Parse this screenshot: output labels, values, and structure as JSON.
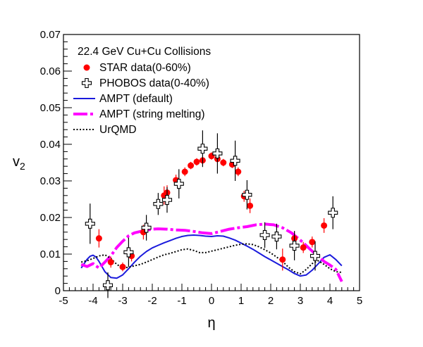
{
  "chart_data": {
    "type": "scatter",
    "title": "",
    "xlabel": "η",
    "ylabel": "v",
    "ylabel_sub": "2",
    "xlim": [
      -5,
      5
    ],
    "ylim": [
      0,
      0.07
    ],
    "xticks": [
      -5,
      -4,
      -3,
      -2,
      -1,
      0,
      1,
      2,
      3,
      4,
      5
    ],
    "yticks": [
      0,
      0.01,
      0.02,
      0.03,
      0.04,
      0.05,
      0.06,
      0.07
    ],
    "ytick_labels": [
      "0",
      "0.01",
      "0.02",
      "0.03",
      "0.04",
      "0.05",
      "0.06",
      "0.07"
    ],
    "grid": false,
    "legend_header": "22.4 GeV Cu+Cu Collisions",
    "legend_position": "top-left",
    "series": [
      {
        "name": "STAR data(0-60%)",
        "kind": "points",
        "marker": "filled-circle",
        "color": "#ff0000",
        "points": [
          {
            "x": -3.8,
            "y": 0.0143,
            "err": 0.0025
          },
          {
            "x": -3.4,
            "y": 0.0078,
            "err": 0.0015
          },
          {
            "x": -3.0,
            "y": 0.0065,
            "err": 0.0012
          },
          {
            "x": -2.7,
            "y": 0.0095,
            "err": 0.0015
          },
          {
            "x": -2.3,
            "y": 0.016,
            "err": 0.002
          },
          {
            "x": -1.6,
            "y": 0.026,
            "err": 0.0025
          },
          {
            "x": -1.5,
            "y": 0.0268,
            "err": 0.002
          },
          {
            "x": -1.2,
            "y": 0.0302,
            "err": 0.0015
          },
          {
            "x": -0.9,
            "y": 0.0325,
            "err": 0.0012
          },
          {
            "x": -0.7,
            "y": 0.0342,
            "err": 0.001
          },
          {
            "x": -0.5,
            "y": 0.0352,
            "err": 0.001
          },
          {
            "x": -0.3,
            "y": 0.0356,
            "err": 0.001
          },
          {
            "x": 0.0,
            "y": 0.0368,
            "err": 0.001
          },
          {
            "x": 0.2,
            "y": 0.036,
            "err": 0.001
          },
          {
            "x": 0.4,
            "y": 0.035,
            "err": 0.001
          },
          {
            "x": 0.7,
            "y": 0.0345,
            "err": 0.001
          },
          {
            "x": 0.9,
            "y": 0.0325,
            "err": 0.0012
          },
          {
            "x": 1.1,
            "y": 0.0258,
            "err": 0.0015
          },
          {
            "x": 1.3,
            "y": 0.0232,
            "err": 0.002
          },
          {
            "x": 2.4,
            "y": 0.0085,
            "err": 0.003
          },
          {
            "x": 2.8,
            "y": 0.0143,
            "err": 0.002
          },
          {
            "x": 3.1,
            "y": 0.0118,
            "err": 0.0015
          },
          {
            "x": 3.4,
            "y": 0.0133,
            "err": 0.0015
          },
          {
            "x": 3.8,
            "y": 0.0178,
            "err": 0.002
          }
        ]
      },
      {
        "name": "PHOBOS data(0-40%)",
        "kind": "points",
        "marker": "open-cross",
        "color": "#000000",
        "points": [
          {
            "x": -4.1,
            "y": 0.0183,
            "err": 0.0055
          },
          {
            "x": -3.5,
            "y": 0.0015,
            "err": 0.0035
          },
          {
            "x": -2.8,
            "y": 0.0105,
            "err": 0.004
          },
          {
            "x": -2.2,
            "y": 0.0172,
            "err": 0.0035
          },
          {
            "x": -1.8,
            "y": 0.0237,
            "err": 0.003
          },
          {
            "x": -1.5,
            "y": 0.0248,
            "err": 0.0035
          },
          {
            "x": -1.1,
            "y": 0.0292,
            "err": 0.004
          },
          {
            "x": -0.3,
            "y": 0.0388,
            "err": 0.005
          },
          {
            "x": 0.2,
            "y": 0.0375,
            "err": 0.0055
          },
          {
            "x": 0.8,
            "y": 0.0355,
            "err": 0.0055
          },
          {
            "x": 1.2,
            "y": 0.0262,
            "err": 0.004
          },
          {
            "x": 1.8,
            "y": 0.0152,
            "err": 0.0035
          },
          {
            "x": 2.2,
            "y": 0.0148,
            "err": 0.0035
          },
          {
            "x": 2.8,
            "y": 0.0123,
            "err": 0.004
          },
          {
            "x": 3.5,
            "y": 0.0095,
            "err": 0.004
          },
          {
            "x": 4.1,
            "y": 0.0213,
            "err": 0.0045
          }
        ]
      },
      {
        "name": "AMPT (default)",
        "kind": "line",
        "style": "solid",
        "color": "#1a1adc",
        "x": [
          -4.4,
          -4.3,
          -4.2,
          -4.1,
          -4.0,
          -3.9,
          -3.8,
          -3.6,
          -3.4,
          -3.2,
          -3.0,
          -2.8,
          -2.6,
          -2.4,
          -2.2,
          -2.0,
          -1.8,
          -1.6,
          -1.4,
          -1.2,
          -1.0,
          -0.8,
          -0.6,
          -0.4,
          -0.2,
          0.0,
          0.2,
          0.4,
          0.6,
          0.8,
          1.0,
          1.2,
          1.4,
          1.6,
          1.8,
          2.0,
          2.2,
          2.4,
          2.6,
          2.8,
          3.0,
          3.2,
          3.4,
          3.6,
          3.8,
          4.0,
          4.2,
          4.4
        ],
        "y": [
          0.0062,
          0.0074,
          0.0086,
          0.0094,
          0.0097,
          0.0092,
          0.008,
          0.0052,
          0.0036,
          0.0034,
          0.0043,
          0.006,
          0.0078,
          0.0094,
          0.0107,
          0.0117,
          0.0124,
          0.0131,
          0.0137,
          0.0143,
          0.0148,
          0.0151,
          0.0152,
          0.0151,
          0.0149,
          0.0148,
          0.015,
          0.0149,
          0.0144,
          0.0138,
          0.013,
          0.0122,
          0.0113,
          0.0103,
          0.0093,
          0.0084,
          0.0075,
          0.0066,
          0.0057,
          0.0047,
          0.004,
          0.0043,
          0.0056,
          0.0073,
          0.0091,
          0.0098,
          0.0085,
          0.0068
        ]
      },
      {
        "name": "AMPT (string melting)",
        "kind": "line",
        "style": "dash",
        "color": "#ff00ff",
        "x": [
          -4.4,
          -4.2,
          -4.0,
          -3.8,
          -3.6,
          -3.4,
          -3.2,
          -3.0,
          -2.8,
          -2.6,
          -2.4,
          -2.2,
          -2.0,
          -1.8,
          -1.5,
          -1.2,
          -0.9,
          -0.6,
          -0.3,
          0.0,
          0.3,
          0.6,
          0.9,
          1.2,
          1.5,
          1.8,
          2.1,
          2.4,
          2.7,
          3.0,
          3.2,
          3.4,
          3.6,
          3.8,
          4.0,
          4.2,
          4.4
        ],
        "y": [
          0.0072,
          0.0066,
          0.0074,
          0.0062,
          0.0078,
          0.0095,
          0.0118,
          0.0135,
          0.015,
          0.0158,
          0.0162,
          0.0165,
          0.0168,
          0.0169,
          0.0168,
          0.0166,
          0.0165,
          0.0162,
          0.0158,
          0.0156,
          0.0162,
          0.0168,
          0.0172,
          0.0175,
          0.018,
          0.0182,
          0.018,
          0.0172,
          0.0158,
          0.0138,
          0.0123,
          0.0108,
          0.0095,
          0.008,
          0.007,
          0.0058,
          0.0025
        ]
      },
      {
        "name": "UrQMD",
        "kind": "line",
        "style": "dot",
        "color": "#000000",
        "x": [
          -4.4,
          -4.2,
          -4.0,
          -3.8,
          -3.6,
          -3.4,
          -3.2,
          -3.0,
          -2.8,
          -2.6,
          -2.4,
          -2.2,
          -2.0,
          -1.8,
          -1.6,
          -1.4,
          -1.2,
          -1.0,
          -0.8,
          -0.6,
          -0.4,
          -0.2,
          0.0,
          0.2,
          0.4,
          0.6,
          0.8,
          1.0,
          1.2,
          1.4,
          1.6,
          1.8,
          2.0,
          2.2,
          2.4,
          2.6,
          2.8,
          3.0,
          3.2,
          3.4,
          3.6,
          3.8,
          4.0,
          4.2,
          4.4
        ],
        "y": [
          0.0078,
          0.0082,
          0.0088,
          0.0095,
          0.0098,
          0.0088,
          0.0072,
          0.0062,
          0.0064,
          0.0068,
          0.0072,
          0.0078,
          0.0085,
          0.0092,
          0.0098,
          0.0102,
          0.0107,
          0.0112,
          0.0114,
          0.011,
          0.0104,
          0.0104,
          0.0108,
          0.0112,
          0.0116,
          0.012,
          0.0124,
          0.0127,
          0.0128,
          0.0126,
          0.012,
          0.0112,
          0.0103,
          0.0092,
          0.008,
          0.0064,
          0.0052,
          0.0046,
          0.0058,
          0.0074,
          0.0082,
          0.0072,
          0.006,
          0.0052,
          0.005
        ]
      }
    ]
  }
}
